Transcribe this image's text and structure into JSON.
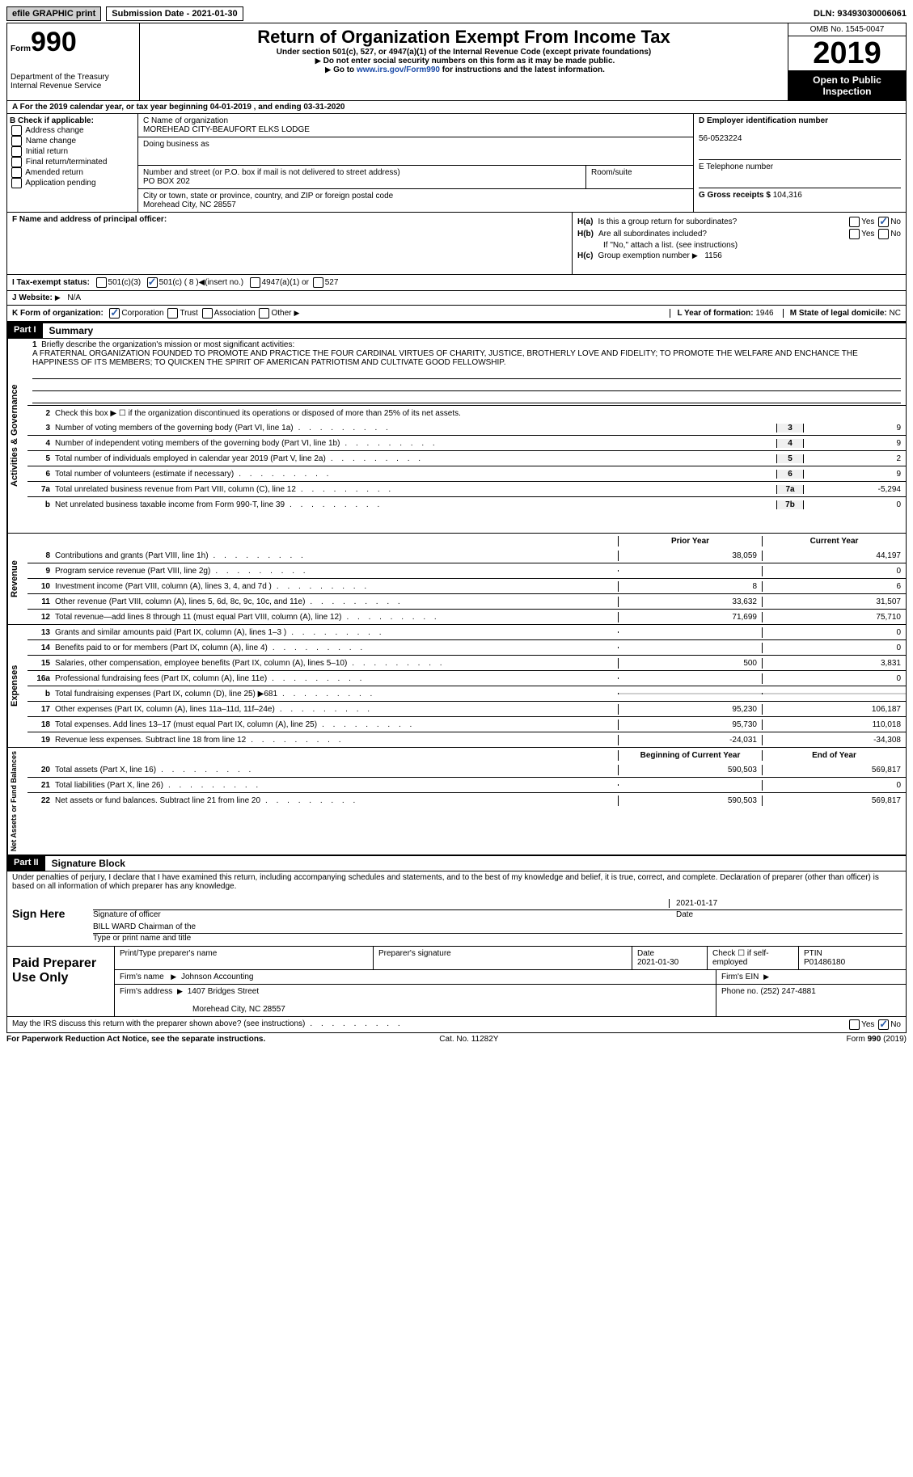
{
  "top": {
    "efile": "efile GRAPHIC print",
    "submission": "Submission Date - 2021-01-30",
    "dln": "DLN: 93493030006061"
  },
  "header": {
    "form_label": "Form",
    "form_num": "990",
    "dept": "Department of the Treasury\nInternal Revenue Service",
    "title": "Return of Organization Exempt From Income Tax",
    "sub": "Under section 501(c), 527, or 4947(a)(1) of the Internal Revenue Code (except private foundations)",
    "note1": "Do not enter social security numbers on this form as it may be made public.",
    "note2_pre": "Go to ",
    "note2_link": "www.irs.gov/Form990",
    "note2_post": " for instructions and the latest information.",
    "omb": "OMB No. 1545-0047",
    "year": "2019",
    "open": "Open to Public Inspection"
  },
  "period": "For the 2019 calendar year, or tax year beginning 04-01-2019   , and ending 03-31-2020",
  "b": {
    "label": "B Check if applicable:",
    "opts": [
      "Address change",
      "Name change",
      "Initial return",
      "Final return/terminated",
      "Amended return",
      "Application pending"
    ]
  },
  "c": {
    "name_label": "C Name of organization",
    "name": "MOREHEAD CITY-BEAUFORT ELKS LODGE",
    "dba_label": "Doing business as",
    "dba": "",
    "street_label": "Number and street (or P.O. box if mail is not delivered to street address)",
    "street": "PO BOX 202",
    "suite_label": "Room/suite",
    "city_label": "City or town, state or province, country, and ZIP or foreign postal code",
    "city": "Morehead City, NC  28557"
  },
  "d": {
    "ein_label": "D Employer identification number",
    "ein": "56-0523224",
    "phone_label": "E Telephone number",
    "phone": "",
    "gross_label": "G Gross receipts $",
    "gross": "104,316"
  },
  "f": {
    "label": "F  Name and address of principal officer:",
    "value": ""
  },
  "h": {
    "a": "Is this a group return for subordinates?",
    "b": "Are all subordinates included?",
    "b_note": "If \"No,\" attach a list. (see instructions)",
    "c_label": "Group exemption number",
    "c_val": "1156"
  },
  "i": {
    "label": "I  Tax-exempt status:",
    "insert": "501(c) ( 8 )",
    "arrow_note": "(insert no.)"
  },
  "j": {
    "label": "J  Website:",
    "value": "N/A"
  },
  "k": {
    "label": "K Form of organization:",
    "year_label": "L Year of formation:",
    "year": "1946",
    "state_label": "M State of legal domicile:",
    "state": "NC"
  },
  "part1": {
    "header": "Part I",
    "title": "Summary",
    "q1": "Briefly describe the organization's mission or most significant activities:",
    "mission": "A FRATERNAL ORGANIZATION FOUNDED TO PROMOTE AND PRACTICE THE FOUR CARDINAL VIRTUES OF CHARITY, JUSTICE, BROTHERLY LOVE AND FIDELITY; TO PROMOTE THE WELFARE AND ENCHANCE THE HAPPINESS OF ITS MEMBERS; TO QUICKEN THE SPIRIT OF AMERICAN PATRIOTISM AND CULTIVATE GOOD FELLOWSHIP.",
    "q2": "Check this box ▶ ☐  if the organization discontinued its operations or disposed of more than 25% of its net assets.",
    "lines": [
      {
        "n": "3",
        "d": "Number of voting members of the governing body (Part VI, line 1a)",
        "k": "3",
        "v": "9"
      },
      {
        "n": "4",
        "d": "Number of independent voting members of the governing body (Part VI, line 1b)",
        "k": "4",
        "v": "9"
      },
      {
        "n": "5",
        "d": "Total number of individuals employed in calendar year 2019 (Part V, line 2a)",
        "k": "5",
        "v": "2"
      },
      {
        "n": "6",
        "d": "Total number of volunteers (estimate if necessary)",
        "k": "6",
        "v": "9"
      },
      {
        "n": "7a",
        "d": "Total unrelated business revenue from Part VIII, column (C), line 12",
        "k": "7a",
        "v": "-5,294"
      },
      {
        "n": "b",
        "d": "Net unrelated business taxable income from Form 990-T, line 39",
        "k": "7b",
        "v": "0"
      }
    ],
    "col_prior": "Prior Year",
    "col_curr": "Current Year",
    "rev": [
      {
        "n": "8",
        "d": "Contributions and grants (Part VIII, line 1h)",
        "p": "38,059",
        "c": "44,197"
      },
      {
        "n": "9",
        "d": "Program service revenue (Part VIII, line 2g)",
        "p": "",
        "c": "0"
      },
      {
        "n": "10",
        "d": "Investment income (Part VIII, column (A), lines 3, 4, and 7d )",
        "p": "8",
        "c": "6"
      },
      {
        "n": "11",
        "d": "Other revenue (Part VIII, column (A), lines 5, 6d, 8c, 9c, 10c, and 11e)",
        "p": "33,632",
        "c": "31,507"
      },
      {
        "n": "12",
        "d": "Total revenue—add lines 8 through 11 (must equal Part VIII, column (A), line 12)",
        "p": "71,699",
        "c": "75,710"
      }
    ],
    "exp": [
      {
        "n": "13",
        "d": "Grants and similar amounts paid (Part IX, column (A), lines 1–3 )",
        "p": "",
        "c": "0"
      },
      {
        "n": "14",
        "d": "Benefits paid to or for members (Part IX, column (A), line 4)",
        "p": "",
        "c": "0"
      },
      {
        "n": "15",
        "d": "Salaries, other compensation, employee benefits (Part IX, column (A), lines 5–10)",
        "p": "500",
        "c": "3,831"
      },
      {
        "n": "16a",
        "d": "Professional fundraising fees (Part IX, column (A), line 11e)",
        "p": "",
        "c": "0"
      },
      {
        "n": "b",
        "d": "Total fundraising expenses (Part IX, column (D), line 25) ▶681",
        "p": "SHADE",
        "c": "SHADE"
      },
      {
        "n": "17",
        "d": "Other expenses (Part IX, column (A), lines 11a–11d, 11f–24e)",
        "p": "95,230",
        "c": "106,187"
      },
      {
        "n": "18",
        "d": "Total expenses. Add lines 13–17 (must equal Part IX, column (A), line 25)",
        "p": "95,730",
        "c": "110,018"
      },
      {
        "n": "19",
        "d": "Revenue less expenses. Subtract line 18 from line 12",
        "p": "-24,031",
        "c": "-34,308"
      }
    ],
    "na_prior": "Beginning of Current Year",
    "na_curr": "End of Year",
    "na": [
      {
        "n": "20",
        "d": "Total assets (Part X, line 16)",
        "p": "590,503",
        "c": "569,817"
      },
      {
        "n": "21",
        "d": "Total liabilities (Part X, line 26)",
        "p": "",
        "c": "0"
      },
      {
        "n": "22",
        "d": "Net assets or fund balances. Subtract line 21 from line 20",
        "p": "590,503",
        "c": "569,817"
      }
    ]
  },
  "part2": {
    "header": "Part II",
    "title": "Signature Block",
    "decl": "Under penalties of perjury, I declare that I have examined this return, including accompanying schedules and statements, and to the best of my knowledge and belief, it is true, correct, and complete. Declaration of preparer (other than officer) is based on all information of which preparer has any knowledge.",
    "sign_here": "Sign Here",
    "sig_officer": "Signature of officer",
    "sig_date": "2021-01-17",
    "date_label": "Date",
    "officer_name": "BILL WARD Chairman of the",
    "type_label": "Type or print name and title",
    "paid": "Paid Preparer Use Only",
    "prep_name_label": "Print/Type preparer's name",
    "prep_sig_label": "Preparer's signature",
    "prep_date_label": "Date",
    "prep_date": "2021-01-30",
    "self_emp": "Check ☐ if self-employed",
    "ptin_label": "PTIN",
    "ptin": "P01486180",
    "firm_name_label": "Firm's name",
    "firm_name": "Johnson Accounting",
    "firm_ein_label": "Firm's EIN",
    "firm_addr_label": "Firm's address",
    "firm_addr": "1407 Bridges Street",
    "firm_city": "Morehead City, NC  28557",
    "phone_label": "Phone no.",
    "phone": "(252) 247-4881",
    "discuss": "May the IRS discuss this return with the preparer shown above? (see instructions)"
  },
  "footer": {
    "left": "For Paperwork Reduction Act Notice, see the separate instructions.",
    "mid": "Cat. No. 11282Y",
    "right": "Form 990 (2019)"
  }
}
